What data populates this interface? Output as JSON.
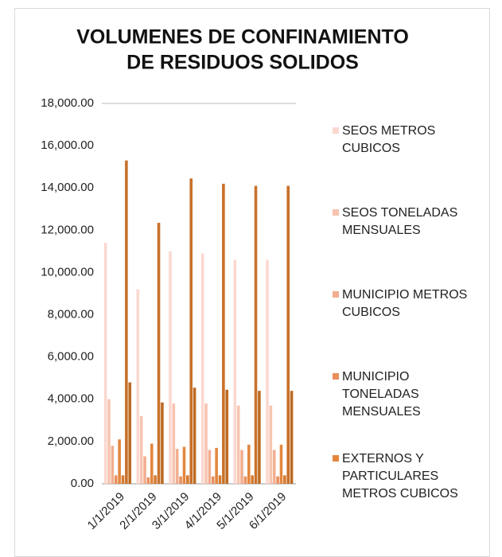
{
  "chart_data": {
    "type": "bar",
    "title": [
      "VOLUMENES DE CONFINAMIENTO",
      "DE RESIDUOS SOLIDOS"
    ],
    "categories": [
      "1/1/2019",
      "2/1/2019",
      "3/1/2019",
      "4/1/2019",
      "5/1/2019",
      "6/1/2019"
    ],
    "series": [
      {
        "name": "SEOS METROS CUBICOS",
        "color": "#fbd8cf",
        "values": [
          11400,
          9200,
          11000,
          10900,
          10600,
          10600
        ]
      },
      {
        "name": "SEOS TONELADAS MENSUALES",
        "color": "#f7c4b0",
        "values": [
          4000,
          3200,
          3800,
          3800,
          3700,
          3700
        ]
      },
      {
        "name": "MUNICIPIO METROS CUBICOS",
        "color": "#f2ae90",
        "values": [
          1800,
          1300,
          1650,
          1600,
          1600,
          1600
        ]
      },
      {
        "name": "MUNICIPIO TONELADAS MENSUALES",
        "color": "#e98f5e",
        "values": [
          400,
          300,
          350,
          350,
          350,
          350
        ]
      },
      {
        "name": "EXTERNOS Y PARTICULARES METROS CUBICOS",
        "color": "#e3873f",
        "values": [
          2100,
          1900,
          1750,
          1700,
          1850,
          1850
        ]
      },
      {
        "color": "#d47a30",
        "values": [
          400,
          400,
          400,
          400,
          400,
          400
        ]
      },
      {
        "color": "#c8712a",
        "values": [
          15300,
          12350,
          14450,
          14200,
          14100,
          14100
        ]
      },
      {
        "color": "#bd6a22",
        "values": [
          4800,
          3850,
          4550,
          4450,
          4400,
          4400
        ]
      }
    ],
    "ylim": [
      0,
      18000
    ],
    "yticks": [
      {
        "value": 0,
        "label": "0.00"
      },
      {
        "value": 2000,
        "label": "2,000.00"
      },
      {
        "value": 4000,
        "label": "4,000.00"
      },
      {
        "value": 6000,
        "label": "6,000.00"
      },
      {
        "value": 8000,
        "label": "8,000.00"
      },
      {
        "value": 10000,
        "label": "10,000.00"
      },
      {
        "value": 12000,
        "label": "12,000.00"
      },
      {
        "value": 14000,
        "label": "14,000.00"
      },
      {
        "value": 16000,
        "label": "16,000.00"
      },
      {
        "value": 18000,
        "label": "18,000.00"
      }
    ],
    "grid": false,
    "legend": "right"
  }
}
